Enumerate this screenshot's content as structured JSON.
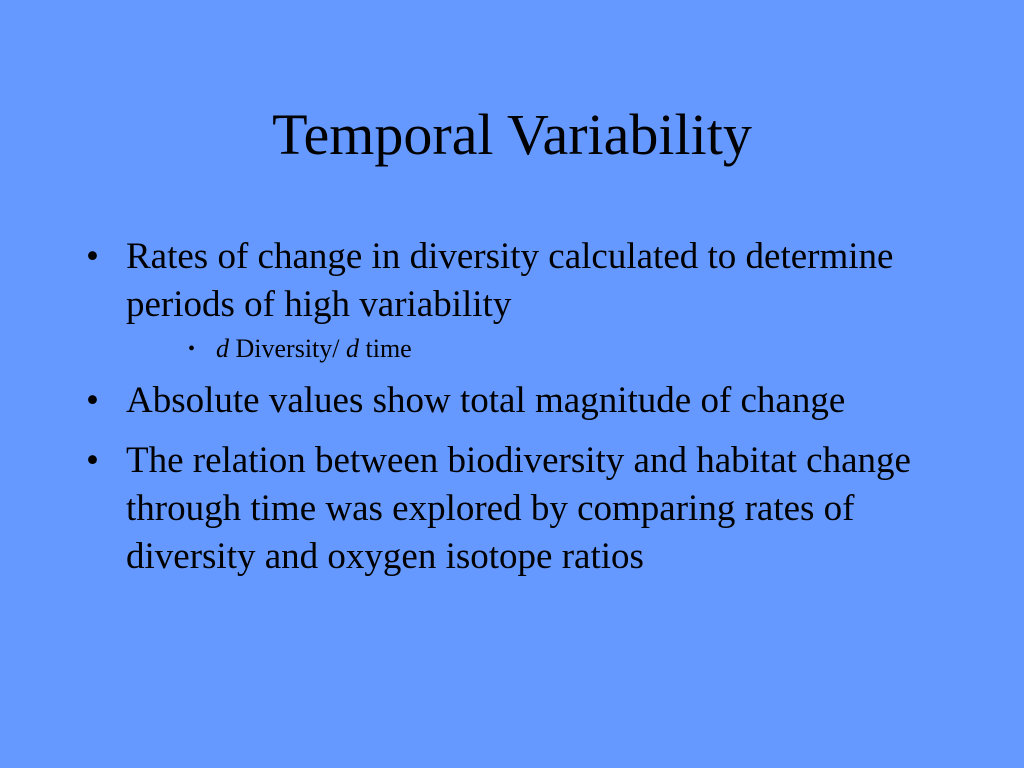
{
  "slide": {
    "title": "Temporal Variability",
    "bullet_glyph": "•",
    "bullets": [
      {
        "text": "Rates of change in diversity calculated to determine periods of high variability",
        "sub_bullets": [
          {
            "part1_italic": "d",
            "part2": " Diversity/ ",
            "part3_italic": "d",
            "part4": " time"
          }
        ]
      },
      {
        "text": "Absolute values show total magnitude of change"
      },
      {
        "text": "The relation between biodiversity and habitat change through time was explored by comparing rates of diversity and oxygen isotope ratios"
      }
    ]
  },
  "colors": {
    "background": "#6699ff",
    "text": "#000000"
  }
}
